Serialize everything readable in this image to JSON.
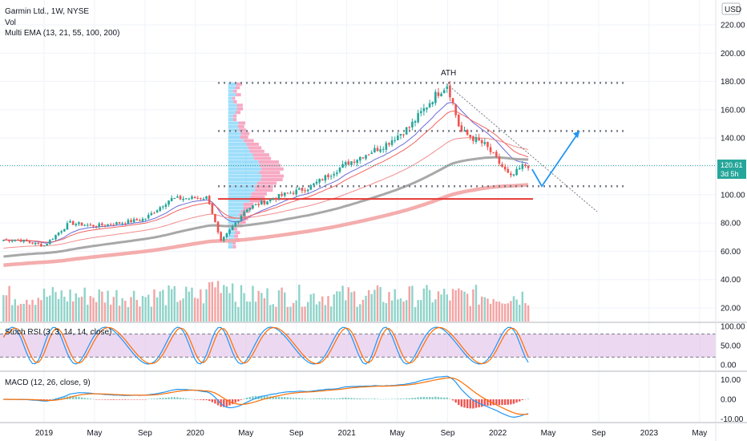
{
  "legend": {
    "title": "Garmin Ltd., 1W, NYSE",
    "vol": "Vol",
    "ema": "Multi EMA (13, 21, 55, 100, 200)",
    "stoch": "Stoch RSI (3, 3, 14, 14, close)",
    "macd": "MACD (12, 26, close, 9)"
  },
  "currency": "USD",
  "price_tag": {
    "value": "120.61",
    "countdown": "3d 5h"
  },
  "annotation": "ATH",
  "colors": {
    "up": "#26a69a",
    "down": "#ef5350",
    "vol_up": "#8fd3c9",
    "vol_down": "#f4a3a3",
    "ema13": "#5b5bd6",
    "ema21": "#ef5350",
    "ema55": "#f08080",
    "ema100": "#9e9e9e",
    "ema200": "#f3a4a4",
    "support": "#e53935",
    "arrow": "#2196f3",
    "stoch_band": "#e1bee7"
  },
  "chart_data": [
    {
      "type": "candlestick",
      "title": "Garmin Ltd., 1W, NYSE",
      "x_ticks": [
        "2019",
        "May",
        "Sep",
        "2020",
        "May",
        "Sep",
        "2021",
        "May",
        "Sep",
        "2022",
        "May",
        "Sep",
        "2023",
        "May"
      ],
      "y_ticks": [
        "20.00",
        "40.00",
        "60.00",
        "80.00",
        "100.00",
        "120.00",
        "140.00",
        "160.00",
        "180.00",
        "200.00",
        "220.00"
      ],
      "ylim": [
        10,
        230
      ],
      "last_price": 120.61,
      "horizontal_levels": [
        179,
        145,
        106
      ],
      "support_line": 97,
      "ath": 178,
      "projection": {
        "from": 106,
        "to": 145
      },
      "series_weekly_closes_approx": [
        {
          "date": "2018-11",
          "price": 68
        },
        {
          "date": "2019-01",
          "price": 64
        },
        {
          "date": "2019-03",
          "price": 80
        },
        {
          "date": "2019-05",
          "price": 78
        },
        {
          "date": "2019-07",
          "price": 80
        },
        {
          "date": "2019-09",
          "price": 83
        },
        {
          "date": "2019-11",
          "price": 97
        },
        {
          "date": "2020-02",
          "price": 98
        },
        {
          "date": "2020-03",
          "price": 66
        },
        {
          "date": "2020-05",
          "price": 90
        },
        {
          "date": "2020-08",
          "price": 100
        },
        {
          "date": "2020-10",
          "price": 105
        },
        {
          "date": "2021-01",
          "price": 122
        },
        {
          "date": "2021-04",
          "price": 135
        },
        {
          "date": "2021-06",
          "price": 148
        },
        {
          "date": "2021-08",
          "price": 170
        },
        {
          "date": "2021-09",
          "price": 178
        },
        {
          "date": "2021-10",
          "price": 145
        },
        {
          "date": "2021-12",
          "price": 135
        },
        {
          "date": "2022-02",
          "price": 112
        },
        {
          "date": "2022-03",
          "price": 120.61
        }
      ]
    },
    {
      "type": "bar",
      "name": "Vol"
    },
    {
      "type": "line",
      "name": "Stoch RSI (3, 3, 14, 14, close)",
      "y_ticks": [
        "0.00",
        "50.00",
        "100.00"
      ],
      "ylim": [
        -10,
        110
      ],
      "bands": [
        20,
        80
      ]
    },
    {
      "type": "line",
      "name": "MACD (12, 26, close, 9)",
      "y_ticks": [
        "-10.00",
        "0.00",
        "10.00"
      ],
      "ylim": [
        -12,
        14
      ]
    }
  ]
}
